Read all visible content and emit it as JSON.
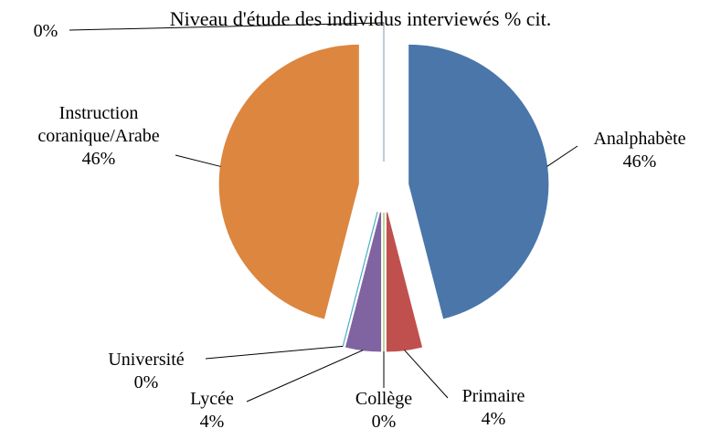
{
  "chart_data": {
    "type": "pie",
    "title": "Niveau d'étude des individus interviewés % cit.",
    "categories": [
      "Analphabète",
      "Primaire",
      "Collège",
      "Lycée",
      "Université",
      "Instruction coranique/Arabe",
      null
    ],
    "values": [
      46,
      4,
      0,
      4,
      0,
      46,
      0
    ],
    "value_labels": [
      "46%",
      "4%",
      "0%",
      "4%",
      "0%",
      "46%",
      "0%"
    ],
    "colors": [
      "#4a76aa",
      "#c0504d",
      "#9bbb59",
      "#8064a2",
      "#4bacc6",
      "#dc863f",
      "#95a9c2"
    ]
  }
}
